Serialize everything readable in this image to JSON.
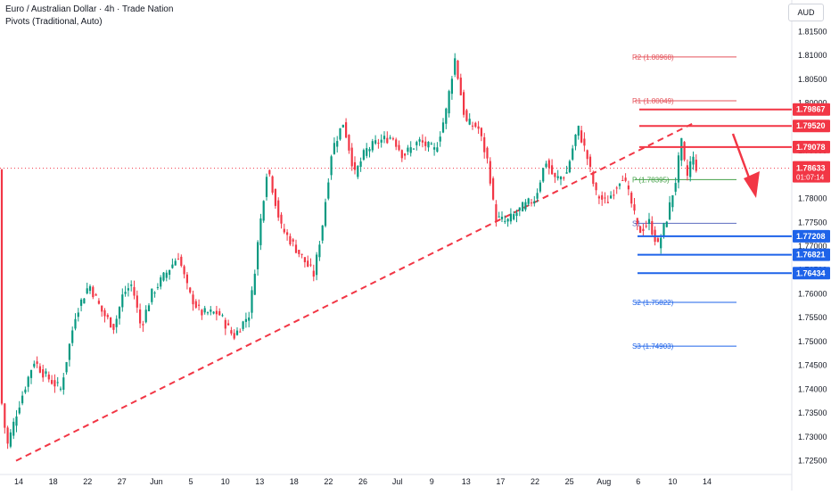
{
  "header": {
    "symbol_title": "Euro / Australian Dollar · 4h · Trade Nation",
    "indicator": "Pivots (Traditional, Auto)",
    "currency": "AUD"
  },
  "chart_data": {
    "type": "candlestick",
    "ylim": [
      1.7225,
      1.8175
    ],
    "y_ticks": [
      "1.81500",
      "1.81000",
      "1.80500",
      "1.80000",
      "1.79500",
      "1.79000",
      "1.78500",
      "1.78000",
      "1.77500",
      "1.77000",
      "1.76500",
      "1.76000",
      "1.75500",
      "1.75000",
      "1.74500",
      "1.74000",
      "1.73500",
      "1.73000",
      "1.72500"
    ],
    "x_ticks": [
      "14",
      "18",
      "22",
      "27",
      "Jun",
      "5",
      "10",
      "13",
      "18",
      "22",
      "26",
      "Jul",
      "9",
      "13",
      "17",
      "22",
      "25",
      "Aug",
      "6",
      "10",
      "14"
    ],
    "path": [
      [
        0,
        1.74
      ],
      [
        8,
        1.728
      ],
      [
        20,
        1.736
      ],
      [
        38,
        1.746
      ],
      [
        50,
        1.743
      ],
      [
        68,
        1.74
      ],
      [
        85,
        1.756
      ],
      [
        100,
        1.762
      ],
      [
        115,
        1.756
      ],
      [
        128,
        1.753
      ],
      [
        138,
        1.76
      ],
      [
        148,
        1.762
      ],
      [
        158,
        1.753
      ],
      [
        170,
        1.76
      ],
      [
        185,
        1.764
      ],
      [
        200,
        1.768
      ],
      [
        212,
        1.76
      ],
      [
        225,
        1.756
      ],
      [
        245,
        1.756
      ],
      [
        262,
        1.751
      ],
      [
        280,
        1.756
      ],
      [
        290,
        1.772
      ],
      [
        300,
        1.787
      ],
      [
        315,
        1.774
      ],
      [
        330,
        1.77
      ],
      [
        352,
        1.764
      ],
      [
        362,
        1.775
      ],
      [
        372,
        1.79
      ],
      [
        385,
        1.796
      ],
      [
        398,
        1.785
      ],
      [
        410,
        1.79
      ],
      [
        425,
        1.792
      ],
      [
        440,
        1.793
      ],
      [
        452,
        1.789
      ],
      [
        470,
        1.792
      ],
      [
        488,
        1.79
      ],
      [
        500,
        1.798
      ],
      [
        510,
        1.8095
      ],
      [
        522,
        1.796
      ],
      [
        536,
        1.795
      ],
      [
        548,
        1.787
      ],
      [
        555,
        1.776
      ],
      [
        568,
        1.775
      ],
      [
        585,
        1.778
      ],
      [
        600,
        1.78
      ],
      [
        612,
        1.788
      ],
      [
        622,
        1.784
      ],
      [
        635,
        1.785
      ],
      [
        648,
        1.795
      ],
      [
        658,
        1.789
      ],
      [
        668,
        1.781
      ],
      [
        680,
        1.779
      ],
      [
        698,
        1.785
      ],
      [
        708,
        1.779
      ],
      [
        716,
        1.773
      ],
      [
        728,
        1.775
      ],
      [
        738,
        1.77
      ],
      [
        748,
        1.776
      ],
      [
        758,
        1.784
      ],
      [
        764,
        1.792
      ],
      [
        770,
        1.784
      ],
      [
        776,
        1.789
      ],
      [
        782,
        1.786
      ]
    ],
    "last_price": 1.78633,
    "last_price_label": "1.78633",
    "countdown_label": "01:07:14",
    "trendline": {
      "from": [
        18,
        1.725
      ],
      "to": [
        780,
        1.796
      ]
    },
    "pivots": [
      {
        "name": "R2",
        "label": "R2 (1.80968)",
        "value": 1.80968,
        "color": "#e5535b"
      },
      {
        "name": "R1",
        "label": "R1 (1.80049)",
        "value": 1.80049,
        "color": "#e5535b"
      },
      {
        "name": "P",
        "label": "P (1.78395)",
        "value": 1.78395,
        "color": "#43a047"
      },
      {
        "name": "S1",
        "label": "S1",
        "value": 1.7748,
        "color": "#5c6bc0"
      },
      {
        "name": "S2",
        "label": "S2 (1.75822)",
        "value": 1.75822,
        "color": "#1e63e9"
      },
      {
        "name": "S3",
        "label": "S3 (1.74903)",
        "value": 1.74903,
        "color": "#1e63e9"
      }
    ],
    "resistance_levels": [
      {
        "value": 1.79867,
        "label": "1.79867"
      },
      {
        "value": 1.7952,
        "label": "1.79520"
      },
      {
        "value": 1.79078,
        "label": "1.79078"
      }
    ],
    "support_levels": [
      {
        "value": 1.77208,
        "label": "1.77208"
      },
      {
        "value": 1.76821,
        "label": "1.76821"
      },
      {
        "value": 1.76434,
        "label": "1.76434"
      }
    ],
    "colors": {
      "up": "#089981",
      "down": "#f23645",
      "resistance": "#f23645",
      "support": "#1e63e9",
      "trendline": "#f23645",
      "price_line": "#f23645",
      "grid": "#f0f3fa",
      "axis_text": "#131722"
    }
  }
}
